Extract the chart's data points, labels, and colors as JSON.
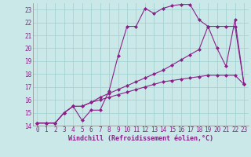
{
  "background_color": "#cbe8e8",
  "grid_color": "#9ecfcf",
  "line_color": "#882288",
  "marker": "D",
  "marker_size": 2.0,
  "line_width": 0.8,
  "xlim": [
    -0.5,
    23.5
  ],
  "ylim": [
    14,
    23.5
  ],
  "yticks": [
    14,
    15,
    16,
    17,
    18,
    19,
    20,
    21,
    22,
    23
  ],
  "xticks": [
    0,
    1,
    2,
    3,
    4,
    5,
    6,
    7,
    8,
    9,
    10,
    11,
    12,
    13,
    14,
    15,
    16,
    17,
    18,
    19,
    20,
    21,
    22,
    23
  ],
  "xlabel": "Windchill (Refroidissement éolien,°C)",
  "xlabel_fontsize": 6.0,
  "tick_fontsize": 5.5,
  "series": [
    [
      14.2,
      14.2,
      14.2,
      15.0,
      15.5,
      14.4,
      15.2,
      15.2,
      16.7,
      19.4,
      21.7,
      21.7,
      23.1,
      22.7,
      23.1,
      23.3,
      23.4,
      23.4,
      22.2,
      21.7,
      20.0,
      18.6,
      22.2,
      17.2
    ],
    [
      14.2,
      14.2,
      14.2,
      15.0,
      15.5,
      15.5,
      15.8,
      16.2,
      16.5,
      16.8,
      17.1,
      17.4,
      17.7,
      18.0,
      18.3,
      18.7,
      19.1,
      19.5,
      19.9,
      21.7,
      21.7,
      21.7,
      21.7,
      17.2
    ],
    [
      14.2,
      14.2,
      14.2,
      15.0,
      15.5,
      15.5,
      15.8,
      16.0,
      16.2,
      16.4,
      16.6,
      16.8,
      17.0,
      17.2,
      17.4,
      17.5,
      17.6,
      17.7,
      17.8,
      17.9,
      17.9,
      17.9,
      17.9,
      17.2
    ]
  ]
}
